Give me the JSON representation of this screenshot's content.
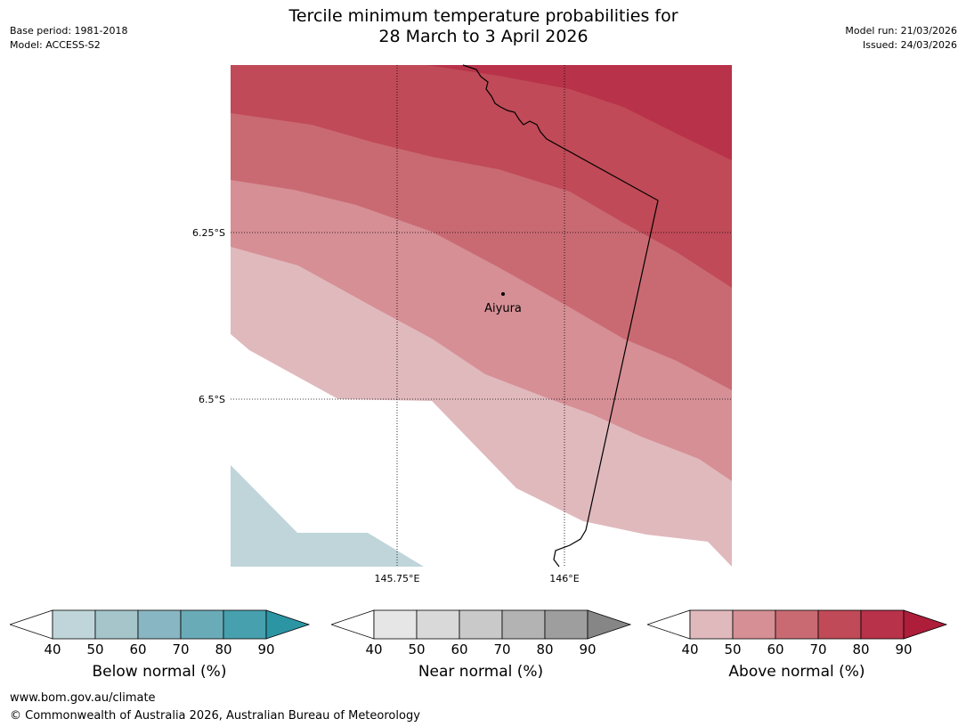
{
  "header": {
    "title_line1": "Tercile minimum temperature probabilities for",
    "title_line2": "28 March to 3 April 2026",
    "base_period": "Base period: 1981-2018",
    "model": "Model: ACCESS-S2",
    "model_run": "Model run: 21/03/2026",
    "issued": "Issued: 24/03/2026"
  },
  "map": {
    "lat_labels": [
      "6.25°S",
      "6.5°S"
    ],
    "lon_labels": [
      "145.75°E",
      "146°E"
    ],
    "place_name": "Aiyura"
  },
  "legends": [
    {
      "label": "Below normal (%)",
      "ticks": [
        "40",
        "50",
        "60",
        "70",
        "80",
        "90"
      ],
      "colors": [
        "#bfd5da",
        "#a5c5cb",
        "#88b6c2",
        "#6aabb8",
        "#47a0ae",
        "#2b95a4"
      ]
    },
    {
      "label": "Near normal (%)",
      "ticks": [
        "40",
        "50",
        "60",
        "70",
        "80",
        "90"
      ],
      "colors": [
        "#e6e6e6",
        "#d9d9d9",
        "#c9c9c9",
        "#b3b3b3",
        "#9e9e9e",
        "#868686"
      ]
    },
    {
      "label": "Above normal (%)",
      "ticks": [
        "40",
        "50",
        "60",
        "70",
        "80",
        "90"
      ],
      "colors": [
        "#e0b9bd",
        "#d58f95",
        "#c96a73",
        "#c04a57",
        "#b8324a",
        "#ae1d3a"
      ]
    }
  ],
  "footer": {
    "url": "www.bom.gov.au/climate",
    "copyright": "© Commonwealth of Australia 2026, Australian Bureau of Meteorology"
  }
}
